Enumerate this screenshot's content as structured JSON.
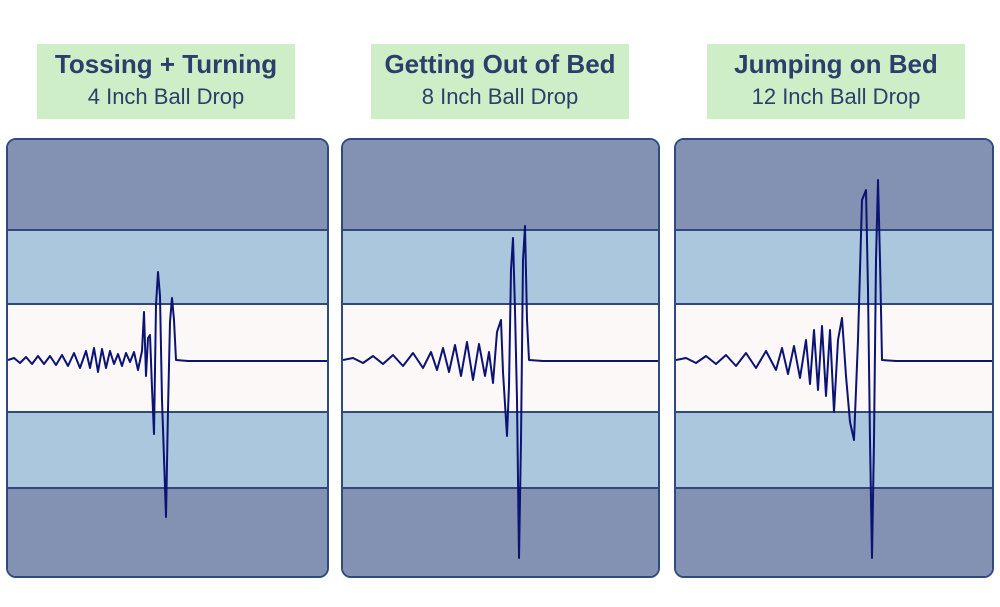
{
  "colors": {
    "label_bg": "#cdeec6",
    "label_text": "#2c3e6b",
    "band_outer": "#8391b3",
    "band_middle": "#abc7de",
    "band_center": "#fcf8f8",
    "band_divider": "#33487a",
    "waveform": "#0b1373"
  },
  "panels": [
    {
      "title": "Tossing + Turning",
      "subtitle": "4 Inch Ball Drop"
    },
    {
      "title": "Getting Out of Bed",
      "subtitle": "8 Inch Ball Drop"
    },
    {
      "title": "Jumping on Bed",
      "subtitle": "12 Inch Ball Drop"
    }
  ]
}
